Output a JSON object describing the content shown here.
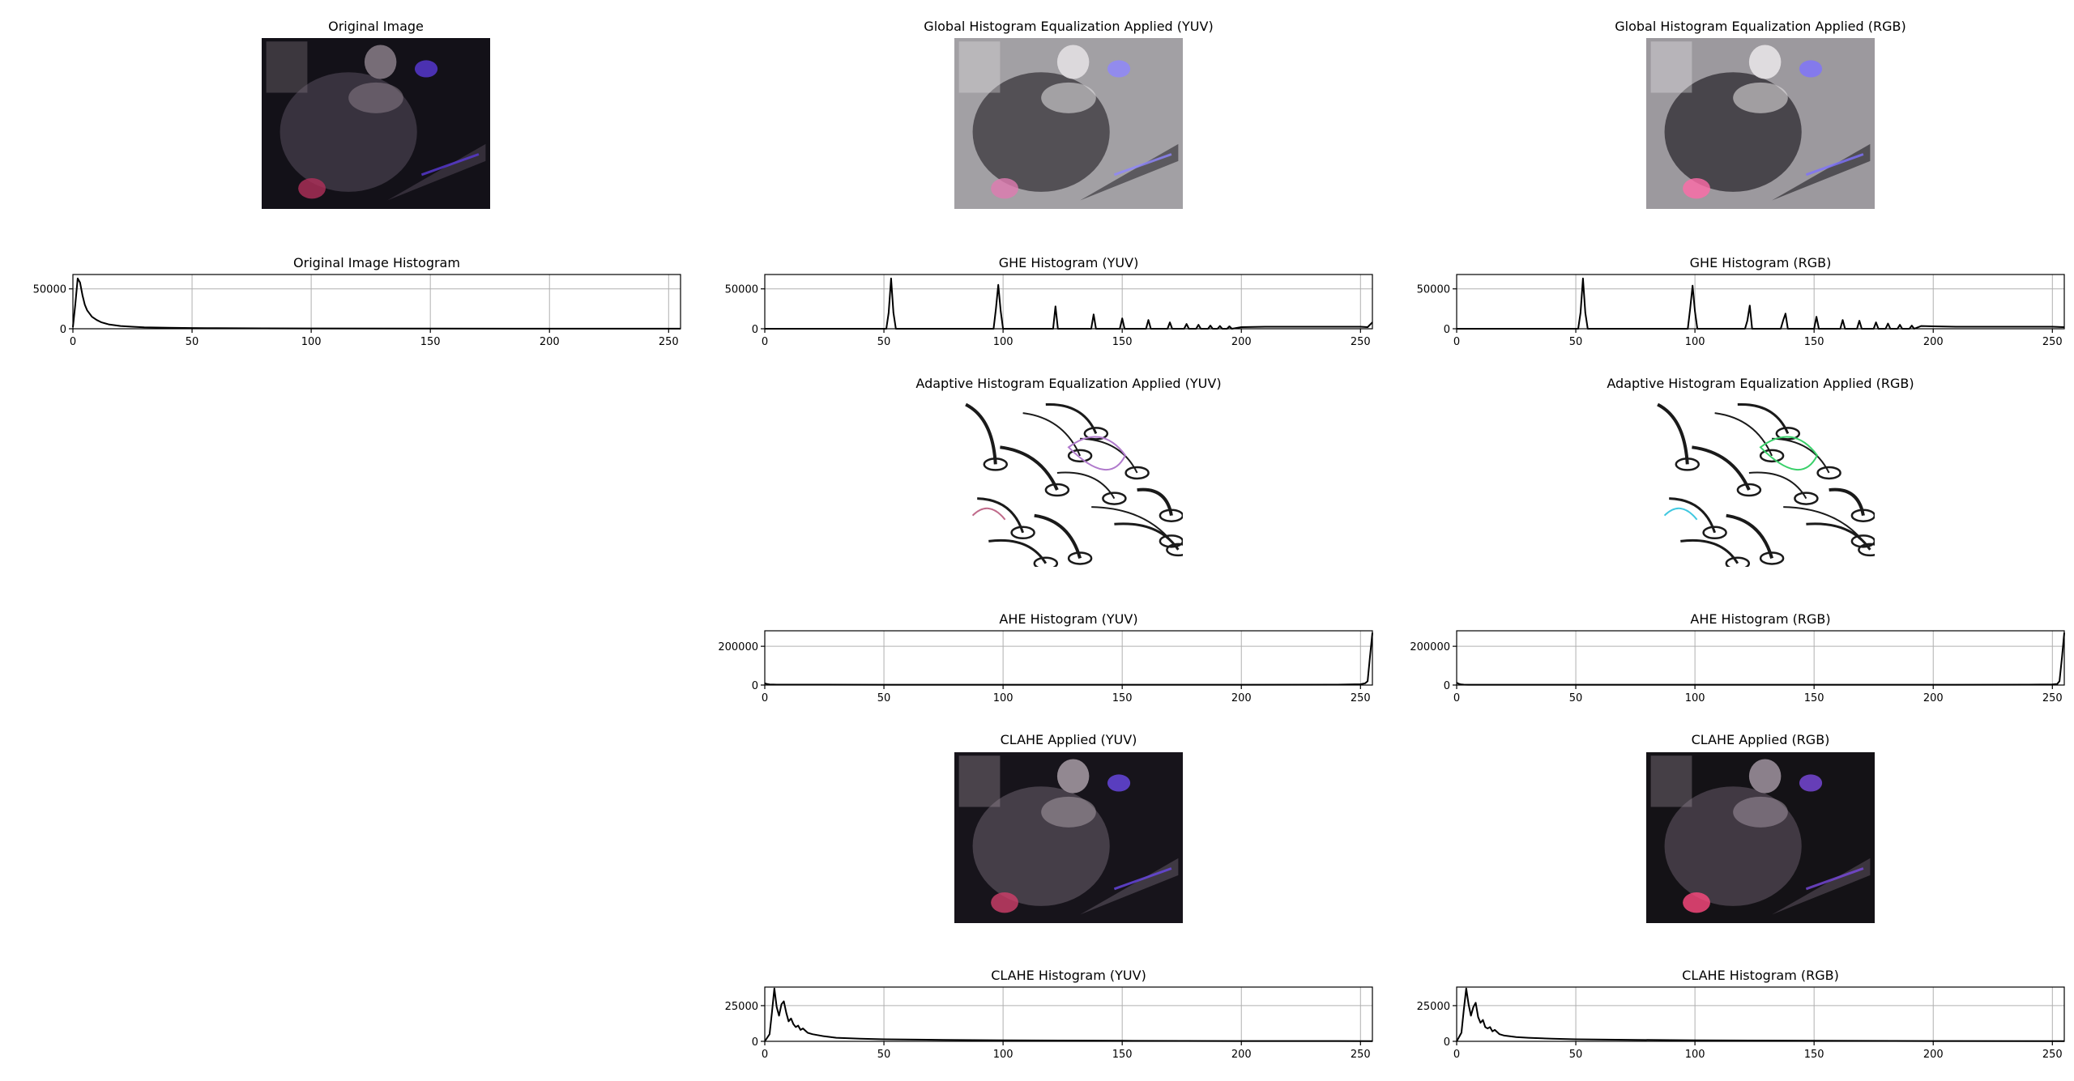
{
  "images": {
    "original": {
      "title": "Original Image",
      "kind": "dark",
      "colors": {
        "bg": "#131118",
        "mid": "#3d3642",
        "high": "#8a7e88",
        "accent": "#5a3ad8",
        "tint": "#b0305a"
      }
    },
    "ghe_yuv": {
      "title": "Global Histogram Equalization Applied (YUV)",
      "kind": "bright",
      "colors": {
        "bg": "#a2a0a4",
        "mid": "#4a474c",
        "high": "#e6e3e6",
        "accent": "#8f86ff",
        "tint": "#e07ab0"
      }
    },
    "ghe_rgb": {
      "title": "Global Histogram Equalization Applied (RGB)",
      "kind": "bright",
      "colors": {
        "bg": "#9c999e",
        "mid": "#3f3c41",
        "high": "#ebe8ea",
        "accent": "#7e72ff",
        "tint": "#ff6aa8"
      }
    },
    "ahe_yuv": {
      "title": "Adaptive Histogram Equalization Applied (YUV)",
      "kind": "edges",
      "colors": {
        "bg": "#ffffff",
        "mid": "#1a1a1a",
        "high": "#ffffff",
        "accent": "#b07acc",
        "tint": "#c06a8a"
      }
    },
    "ahe_rgb": {
      "title": "Adaptive Histogram Equalization Applied (RGB)",
      "kind": "edges",
      "colors": {
        "bg": "#ffffff",
        "mid": "#1a1a1a",
        "high": "#ffffff",
        "accent": "#3ad06a",
        "tint": "#40c8e0"
      }
    },
    "clahe_yuv": {
      "title": "CLAHE Applied (YUV)",
      "kind": "dark",
      "colors": {
        "bg": "#17141b",
        "mid": "#4a424e",
        "high": "#a89ca6",
        "accent": "#6a48e8",
        "tint": "#d03e6a"
      }
    },
    "clahe_rgb": {
      "title": "CLAHE Applied (RGB)",
      "kind": "dark",
      "colors": {
        "bg": "#141216",
        "mid": "#463e48",
        "high": "#a094a0",
        "accent": "#7a4ae0",
        "tint": "#ff4a80"
      }
    }
  },
  "chart_data": [
    {
      "id": "orig_hist",
      "type": "line",
      "title": "Original Image Histogram",
      "xlim": [
        0,
        255
      ],
      "ylim": [
        0,
        68000
      ],
      "xticks": [
        0,
        50,
        100,
        150,
        200,
        250
      ],
      "yticks": [
        0,
        50000
      ],
      "grid": true,
      "x": [
        0,
        1,
        2,
        3,
        4,
        5,
        6,
        8,
        10,
        12,
        15,
        20,
        25,
        30,
        35,
        40,
        50,
        60,
        80,
        100,
        150,
        200,
        250,
        255
      ],
      "y": [
        2000,
        30000,
        63000,
        58000,
        42000,
        30000,
        23000,
        15000,
        11000,
        8000,
        5500,
        3500,
        2500,
        1800,
        1500,
        1200,
        900,
        700,
        500,
        400,
        250,
        150,
        100,
        80
      ]
    },
    {
      "id": "ghe_hist_yuv",
      "type": "line",
      "title": "GHE Histogram (YUV)",
      "xlim": [
        0,
        255
      ],
      "ylim": [
        0,
        68000
      ],
      "xticks": [
        0,
        50,
        100,
        150,
        200,
        250
      ],
      "yticks": [
        0,
        50000
      ],
      "grid": true,
      "x": [
        0,
        51,
        52,
        53,
        54,
        55,
        96,
        97,
        98,
        99,
        100,
        121,
        122,
        123,
        137,
        138,
        139,
        149,
        150,
        151,
        160,
        161,
        162,
        169,
        170,
        171,
        176,
        177,
        178,
        181,
        182,
        183,
        186,
        187,
        188,
        190,
        191,
        192,
        194,
        195,
        196,
        200,
        210,
        220,
        230,
        240,
        250,
        253,
        255
      ],
      "y": [
        0,
        0,
        20000,
        63000,
        20000,
        0,
        0,
        25000,
        55000,
        22000,
        0,
        0,
        28000,
        0,
        0,
        18000,
        0,
        0,
        13000,
        0,
        0,
        11000,
        0,
        0,
        8000,
        0,
        0,
        6000,
        0,
        0,
        5000,
        0,
        0,
        4000,
        0,
        0,
        3500,
        0,
        0,
        3000,
        0,
        2000,
        2500,
        2500,
        2500,
        2500,
        2500,
        2000,
        8000
      ]
    },
    {
      "id": "ghe_hist_rgb",
      "type": "line",
      "title": "GHE Histogram (RGB)",
      "xlim": [
        0,
        255
      ],
      "ylim": [
        0,
        68000
      ],
      "xticks": [
        0,
        50,
        100,
        150,
        200,
        250
      ],
      "yticks": [
        0,
        50000
      ],
      "grid": true,
      "x": [
        0,
        51,
        52,
        53,
        54,
        55,
        97,
        98,
        99,
        100,
        101,
        121,
        122,
        123,
        124,
        136,
        137,
        138,
        139,
        150,
        151,
        152,
        161,
        162,
        163,
        168,
        169,
        170,
        175,
        176,
        177,
        180,
        181,
        182,
        185,
        186,
        187,
        190,
        191,
        192,
        195,
        200,
        210,
        220,
        230,
        240,
        250,
        255
      ],
      "y": [
        0,
        0,
        20000,
        63000,
        20000,
        0,
        0,
        25000,
        54000,
        22000,
        0,
        0,
        10000,
        29000,
        0,
        0,
        10000,
        19000,
        0,
        0,
        15000,
        0,
        0,
        11000,
        0,
        0,
        10000,
        0,
        0,
        8000,
        0,
        0,
        6500,
        0,
        0,
        5000,
        0,
        0,
        4000,
        0,
        3500,
        3000,
        2500,
        2500,
        2500,
        2500,
        2500,
        2000
      ]
    },
    {
      "id": "ahe_hist_yuv",
      "type": "line",
      "title": "AHE Histogram (YUV)",
      "xlim": [
        0,
        255
      ],
      "ylim": [
        0,
        280000
      ],
      "xticks": [
        0,
        50,
        100,
        150,
        200,
        250
      ],
      "yticks": [
        0,
        200000
      ],
      "grid": true,
      "x": [
        0,
        1,
        2,
        5,
        50,
        100,
        150,
        200,
        240,
        250,
        252,
        253,
        254,
        255
      ],
      "y": [
        9000,
        5000,
        3500,
        2000,
        1500,
        1500,
        1500,
        1500,
        2000,
        4000,
        9000,
        20000,
        150000,
        270000
      ]
    },
    {
      "id": "ahe_hist_rgb",
      "type": "line",
      "title": "AHE Histogram (RGB)",
      "xlim": [
        0,
        255
      ],
      "ylim": [
        0,
        280000
      ],
      "xticks": [
        0,
        50,
        100,
        150,
        200,
        250
      ],
      "yticks": [
        0,
        200000
      ],
      "grid": true,
      "x": [
        0,
        1,
        2,
        3,
        5,
        50,
        100,
        150,
        200,
        240,
        250,
        252,
        253,
        254,
        255
      ],
      "y": [
        12000,
        6000,
        3000,
        2000,
        1500,
        1500,
        1500,
        1500,
        1500,
        2000,
        3000,
        5000,
        20000,
        140000,
        270000
      ]
    },
    {
      "id": "clahe_hist_yuv",
      "type": "line",
      "title": "CLAHE Histogram (YUV)",
      "xlim": [
        0,
        255
      ],
      "ylim": [
        0,
        38000
      ],
      "xticks": [
        0,
        50,
        100,
        150,
        200,
        250
      ],
      "yticks": [
        0,
        25000
      ],
      "grid": true,
      "x": [
        0,
        2,
        3,
        4,
        5,
        6,
        7,
        8,
        9,
        10,
        11,
        12,
        13,
        14,
        15,
        16,
        18,
        20,
        25,
        30,
        40,
        50,
        75,
        100,
        150,
        200,
        255
      ],
      "y": [
        0,
        5000,
        20000,
        37000,
        24000,
        18000,
        26000,
        28000,
        20000,
        14000,
        16000,
        12000,
        10000,
        11000,
        8000,
        9000,
        6000,
        5000,
        3500,
        2500,
        1800,
        1400,
        1000,
        700,
        400,
        250,
        150
      ]
    },
    {
      "id": "clahe_hist_rgb",
      "type": "line",
      "title": "CLAHE Histogram (RGB)",
      "xlim": [
        0,
        255
      ],
      "ylim": [
        0,
        38000
      ],
      "xticks": [
        0,
        50,
        100,
        150,
        200,
        250
      ],
      "yticks": [
        0,
        25000
      ],
      "grid": true,
      "x": [
        0,
        2,
        3,
        4,
        5,
        6,
        7,
        8,
        9,
        10,
        11,
        12,
        13,
        14,
        15,
        16,
        18,
        20,
        25,
        30,
        40,
        50,
        75,
        100,
        150,
        200,
        255
      ],
      "y": [
        0,
        6000,
        22000,
        37000,
        26000,
        18000,
        24000,
        27000,
        17000,
        13000,
        15000,
        10000,
        9000,
        10000,
        7000,
        8000,
        5000,
        4000,
        3000,
        2500,
        1800,
        1400,
        1000,
        700,
        400,
        250,
        150
      ]
    }
  ]
}
